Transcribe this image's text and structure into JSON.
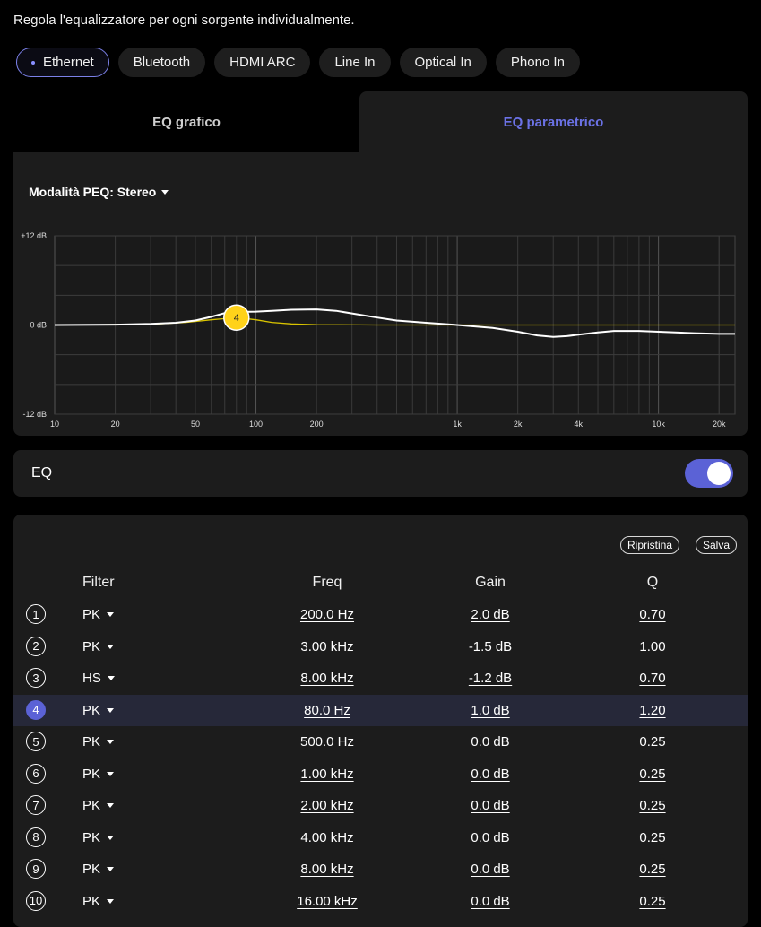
{
  "intro_text": "Regola l'equalizzatore per ogni sorgente individualmente.",
  "sources": [
    {
      "label": "Ethernet",
      "active": true
    },
    {
      "label": "Bluetooth",
      "active": false
    },
    {
      "label": "HDMI ARC",
      "active": false
    },
    {
      "label": "Line In",
      "active": false
    },
    {
      "label": "Optical In",
      "active": false
    },
    {
      "label": "Phono In",
      "active": false
    }
  ],
  "tabs": {
    "graphic": "EQ grafico",
    "parametric": "EQ parametrico",
    "active": "parametric"
  },
  "peq_mode_label": "Modalità PEQ: Stereo",
  "colors": {
    "accent": "#5b62d6",
    "curve": "#ffffff",
    "selected_band_curve": "#d9c400",
    "marker": "#ffd21a"
  },
  "chart_data": {
    "type": "line",
    "title": "",
    "xlabel": "",
    "ylabel": "",
    "x_scale": "log",
    "xlim": [
      10,
      24000
    ],
    "ylim": [
      -12,
      12
    ],
    "y_ticks": [
      {
        "value": 12,
        "label": "+12 dB"
      },
      {
        "value": 0,
        "label": "0 dB"
      },
      {
        "value": -12,
        "label": "-12 dB"
      }
    ],
    "x_ticks": [
      {
        "value": 10,
        "label": "10"
      },
      {
        "value": 20,
        "label": "20"
      },
      {
        "value": 50,
        "label": "50"
      },
      {
        "value": 100,
        "label": "100"
      },
      {
        "value": 200,
        "label": "200"
      },
      {
        "value": 1000,
        "label": "1k"
      },
      {
        "value": 2000,
        "label": "2k"
      },
      {
        "value": 4000,
        "label": "4k"
      },
      {
        "value": 10000,
        "label": "10k"
      },
      {
        "value": 20000,
        "label": "20k"
      }
    ],
    "grid": true,
    "series": [
      {
        "points": [
          [
            10,
            0
          ],
          [
            20,
            0.05
          ],
          [
            30,
            0.15
          ],
          [
            40,
            0.3
          ],
          [
            50,
            0.6
          ],
          [
            60,
            1.1
          ],
          [
            70,
            1.6
          ],
          [
            80,
            1.75
          ],
          [
            100,
            1.8
          ],
          [
            120,
            1.9
          ],
          [
            150,
            2.05
          ],
          [
            200,
            2.1
          ],
          [
            250,
            1.9
          ],
          [
            300,
            1.55
          ],
          [
            400,
            1.0
          ],
          [
            500,
            0.6
          ],
          [
            700,
            0.3
          ],
          [
            1000,
            0
          ],
          [
            1500,
            -0.4
          ],
          [
            2000,
            -0.9
          ],
          [
            2500,
            -1.4
          ],
          [
            3000,
            -1.6
          ],
          [
            3500,
            -1.5
          ],
          [
            4000,
            -1.3
          ],
          [
            5000,
            -1.0
          ],
          [
            6000,
            -0.8
          ],
          [
            8000,
            -0.8
          ],
          [
            10000,
            -0.9
          ],
          [
            15000,
            -1.1
          ],
          [
            20000,
            -1.2
          ],
          [
            24000,
            -1.2
          ]
        ]
      },
      {
        "points": [
          [
            10,
            0
          ],
          [
            30,
            0.1
          ],
          [
            45,
            0.35
          ],
          [
            60,
            0.7
          ],
          [
            80,
            1.0
          ],
          [
            100,
            0.7
          ],
          [
            120,
            0.35
          ],
          [
            150,
            0.15
          ],
          [
            200,
            0.05
          ],
          [
            400,
            0
          ],
          [
            24000,
            0
          ]
        ]
      }
    ],
    "marker": {
      "band": "4",
      "x": 80,
      "y": 1.0
    }
  },
  "eq": {
    "label": "EQ",
    "enabled": true
  },
  "buttons": {
    "reset": "Ripristina",
    "save": "Salva"
  },
  "headers": {
    "filter": "Filter",
    "freq": "Freq",
    "gain": "Gain",
    "q": "Q"
  },
  "bands": [
    {
      "num": "1",
      "type": "PK",
      "freq": "200.0 Hz",
      "gain": "2.0 dB",
      "q": "0.70",
      "selected": false
    },
    {
      "num": "2",
      "type": "PK",
      "freq": "3.00 kHz",
      "gain": "-1.5 dB",
      "q": "1.00",
      "selected": false
    },
    {
      "num": "3",
      "type": "HS",
      "freq": "8.00 kHz",
      "gain": "-1.2 dB",
      "q": "0.70",
      "selected": false
    },
    {
      "num": "4",
      "type": "PK",
      "freq": "80.0 Hz",
      "gain": "1.0 dB",
      "q": "1.20",
      "selected": true
    },
    {
      "num": "5",
      "type": "PK",
      "freq": "500.0 Hz",
      "gain": "0.0 dB",
      "q": "0.25",
      "selected": false
    },
    {
      "num": "6",
      "type": "PK",
      "freq": "1.00 kHz",
      "gain": "0.0 dB",
      "q": "0.25",
      "selected": false
    },
    {
      "num": "7",
      "type": "PK",
      "freq": "2.00 kHz",
      "gain": "0.0 dB",
      "q": "0.25",
      "selected": false
    },
    {
      "num": "8",
      "type": "PK",
      "freq": "4.00 kHz",
      "gain": "0.0 dB",
      "q": "0.25",
      "selected": false
    },
    {
      "num": "9",
      "type": "PK",
      "freq": "8.00 kHz",
      "gain": "0.0 dB",
      "q": "0.25",
      "selected": false
    },
    {
      "num": "10",
      "type": "PK",
      "freq": "16.00 kHz",
      "gain": "0.0 dB",
      "q": "0.25",
      "selected": false
    }
  ]
}
